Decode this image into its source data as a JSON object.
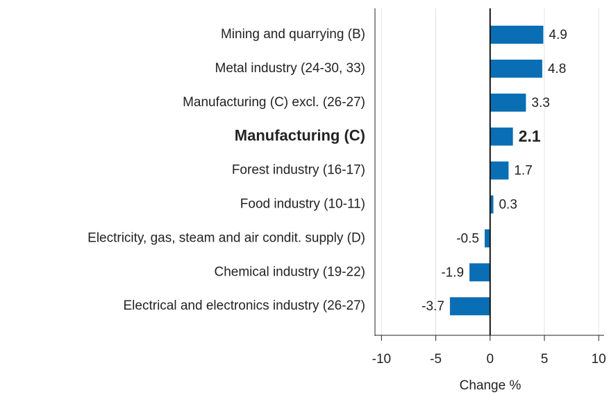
{
  "chart_data": {
    "type": "bar",
    "orientation": "horizontal",
    "categories": [
      "Mining and quarrying (B)",
      "Metal industry (24-30, 33)",
      "Manufacturing (C) excl. (26-27)",
      "Manufacturing (C)",
      "Forest industry (16-17)",
      "Food industry (10-11)",
      "Electricity, gas, steam and air condit. supply (D)",
      "Chemical industry (19-22)",
      "Electrical and electronics industry (26-27)"
    ],
    "values": [
      4.9,
      4.8,
      3.3,
      2.1,
      1.7,
      0.3,
      -0.5,
      -1.9,
      -3.7
    ],
    "color": "#0a6eb4",
    "highlight": 3,
    "x_label": "Change %",
    "xlim": [
      -10.6,
      10.5
    ],
    "xticks": [
      -10,
      -5,
      0,
      5,
      10
    ],
    "grid": true
  }
}
